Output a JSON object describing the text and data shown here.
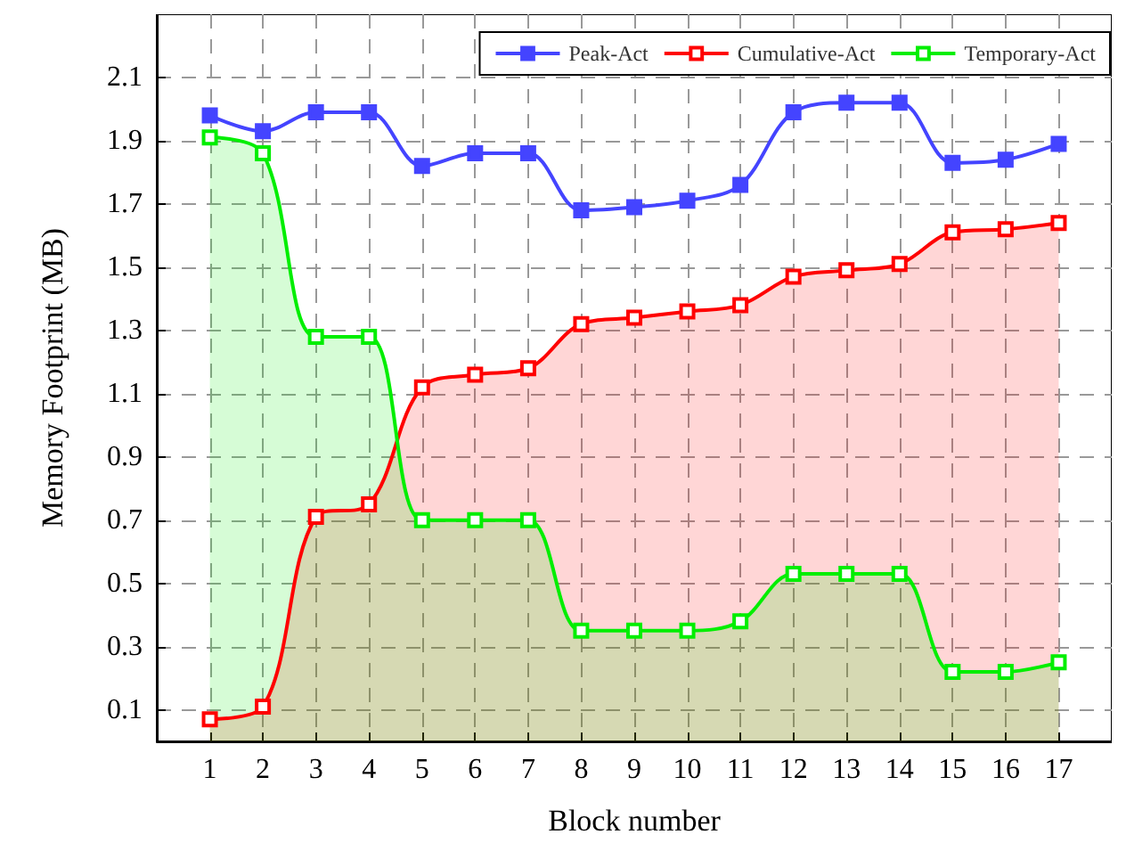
{
  "chart_data": {
    "type": "line",
    "xlabel": "Block number",
    "ylabel": "Memory Footprint (MB)",
    "x": [
      1,
      2,
      3,
      4,
      5,
      6,
      7,
      8,
      9,
      10,
      11,
      12,
      13,
      14,
      15,
      16,
      17
    ],
    "xlim": [
      0,
      18
    ],
    "xticks": [
      1,
      2,
      3,
      4,
      5,
      6,
      7,
      8,
      9,
      10,
      11,
      12,
      13,
      14,
      15,
      16,
      17
    ],
    "ylim": [
      0,
      2.3
    ],
    "yticks": [
      0.1,
      0.3,
      0.5,
      0.7,
      0.9,
      1.1,
      1.3,
      1.5,
      1.7,
      1.9,
      2.1
    ],
    "grid": true,
    "legend": "top right",
    "marker": "square",
    "line_style": "solid",
    "series": [
      {
        "name": "Peak-Act",
        "color": "#4444ff",
        "values": [
          1.98,
          1.93,
          1.99,
          1.99,
          1.82,
          1.86,
          1.86,
          1.68,
          1.69,
          1.71,
          1.76,
          1.99,
          2.02,
          2.02,
          1.83,
          1.84,
          1.89
        ]
      },
      {
        "name": "Cumulative-Act",
        "type": "area",
        "color": "#ff0000",
        "values": [
          0.07,
          0.11,
          0.71,
          0.75,
          1.12,
          1.16,
          1.18,
          1.32,
          1.34,
          1.36,
          1.38,
          1.47,
          1.49,
          1.51,
          1.61,
          1.62,
          1.64
        ]
      },
      {
        "name": "Temporary-Act",
        "type": "area",
        "color": "#00ee00",
        "values": [
          1.91,
          1.86,
          1.28,
          1.28,
          0.7,
          0.7,
          0.7,
          0.35,
          0.35,
          0.35,
          0.38,
          0.53,
          0.53,
          0.53,
          0.22,
          0.22,
          0.25
        ]
      }
    ]
  }
}
